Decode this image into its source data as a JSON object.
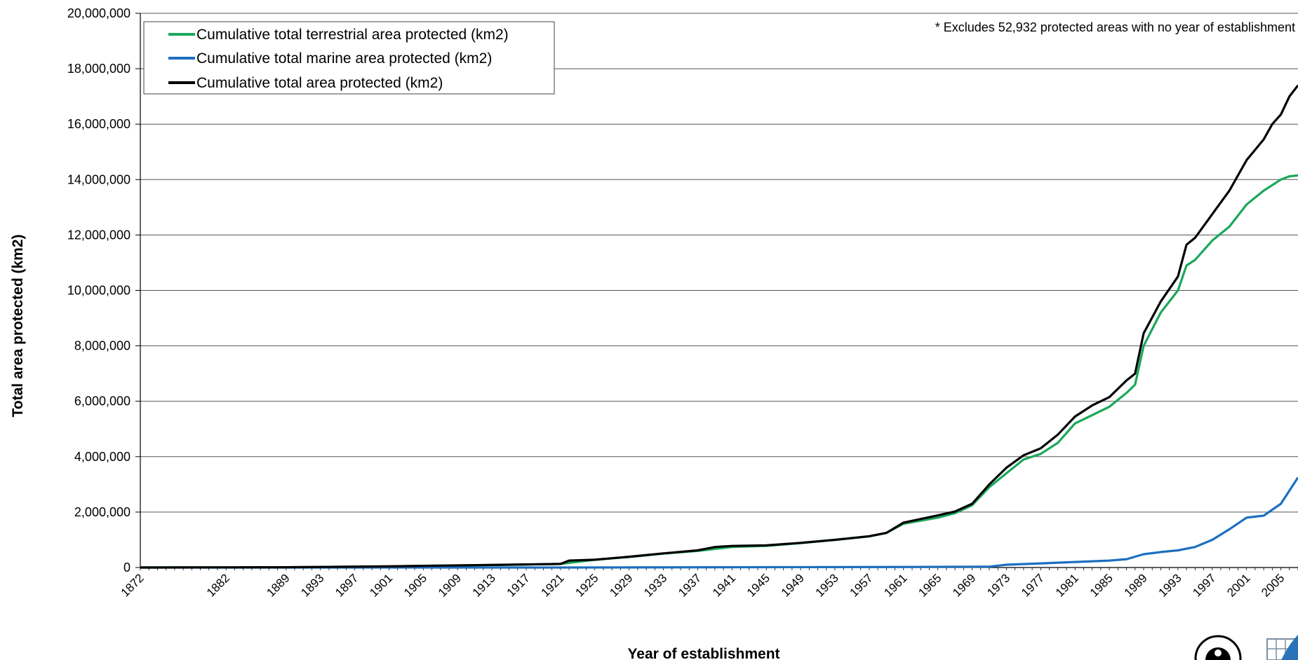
{
  "chart_data": {
    "type": "line",
    "title": "",
    "xlabel": "Year of establishment",
    "ylabel": "Total area protected (km2)",
    "ylim": [
      0,
      20000000
    ],
    "y_ticks": [
      0,
      2000000,
      4000000,
      6000000,
      8000000,
      10000000,
      12000000,
      14000000,
      16000000,
      18000000,
      20000000
    ],
    "y_tick_labels": [
      "0",
      "2,000,000",
      "4,000,000",
      "6,000,000",
      "8,000,000",
      "10,000,000",
      "12,000,000",
      "14,000,000",
      "16,000,000",
      "18,000,000",
      "20,000,000"
    ],
    "x_tick_labels": [
      "1872",
      "1882",
      "1889",
      "1893",
      "1897",
      "1901",
      "1905",
      "1909",
      "1913",
      "1917",
      "1921",
      "1925",
      "1929",
      "1933",
      "1937",
      "1941",
      "1945",
      "1949",
      "1953",
      "1957",
      "1961",
      "1965",
      "1969",
      "1973",
      "1977",
      "1981",
      "1985",
      "1989",
      "1993",
      "1997",
      "2001",
      "2005"
    ],
    "grid": "horizontal",
    "legend_position": "top-left",
    "annotation": "* Excludes 52,932 protected areas with no year of establishment",
    "series": [
      {
        "name": "Cumulative total terrestrial area protected (km2)",
        "color": "#1aa85a",
        "x": [
          1872,
          1882,
          1889,
          1893,
          1901,
          1905,
          1913,
          1917,
          1921,
          1925,
          1929,
          1933,
          1937,
          1941,
          1945,
          1949,
          1953,
          1957,
          1959,
          1961,
          1965,
          1967,
          1969,
          1971,
          1973,
          1975,
          1977,
          1979,
          1981,
          1983,
          1985,
          1987,
          1988,
          1989,
          1991,
          1993,
          1994,
          1995,
          1997,
          1999,
          2001,
          2003,
          2005,
          2006,
          2007
        ],
        "y": [
          0,
          5000,
          10000,
          20000,
          40000,
          60000,
          90000,
          110000,
          130000,
          280000,
          380000,
          500000,
          600000,
          740000,
          780000,
          880000,
          1000000,
          1120000,
          1250000,
          1580000,
          1800000,
          1960000,
          2250000,
          2900000,
          3400000,
          3900000,
          4100000,
          4500000,
          5200000,
          5500000,
          5800000,
          6300000,
          6600000,
          8000000,
          9200000,
          10000000,
          10900000,
          11100000,
          11800000,
          12300000,
          13100000,
          13600000,
          14000000,
          14120000,
          14150000
        ]
      },
      {
        "name": "Cumulative total marine area protected (km2)",
        "color": "#1c6fbf",
        "x": [
          1872,
          1921,
          1961,
          1971,
          1973,
          1977,
          1981,
          1985,
          1987,
          1989,
          1991,
          1993,
          1995,
          1997,
          1999,
          2001,
          2003,
          2005,
          2007
        ],
        "y": [
          0,
          1000,
          20000,
          30000,
          100000,
          150000,
          200000,
          250000,
          300000,
          480000,
          560000,
          620000,
          740000,
          1000000,
          1380000,
          1800000,
          1870000,
          2300000,
          3250000
        ]
      },
      {
        "name": "Cumulative total area protected (km2)",
        "color": "#000000",
        "x": [
          1872,
          1882,
          1889,
          1893,
          1901,
          1905,
          1913,
          1917,
          1921,
          1922,
          1925,
          1929,
          1933,
          1937,
          1939,
          1941,
          1945,
          1949,
          1953,
          1957,
          1959,
          1961,
          1965,
          1967,
          1969,
          1971,
          1973,
          1975,
          1977,
          1979,
          1981,
          1983,
          1985,
          1987,
          1988,
          1989,
          1991,
          1993,
          1994,
          1995,
          1997,
          1999,
          2001,
          2003,
          2004,
          2005,
          2006,
          2007
        ],
        "y": [
          0,
          5000,
          10000,
          20000,
          40000,
          60000,
          90000,
          110000,
          130000,
          250000,
          280000,
          390000,
          510000,
          620000,
          740000,
          780000,
          800000,
          890000,
          1000000,
          1130000,
          1250000,
          1620000,
          1880000,
          2020000,
          2300000,
          3000000,
          3600000,
          4050000,
          4300000,
          4800000,
          5450000,
          5850000,
          6150000,
          6750000,
          7000000,
          8450000,
          9600000,
          10500000,
          11650000,
          11900000,
          12750000,
          13600000,
          14700000,
          15450000,
          16000000,
          16350000,
          17000000,
          17400000
        ]
      }
    ]
  }
}
